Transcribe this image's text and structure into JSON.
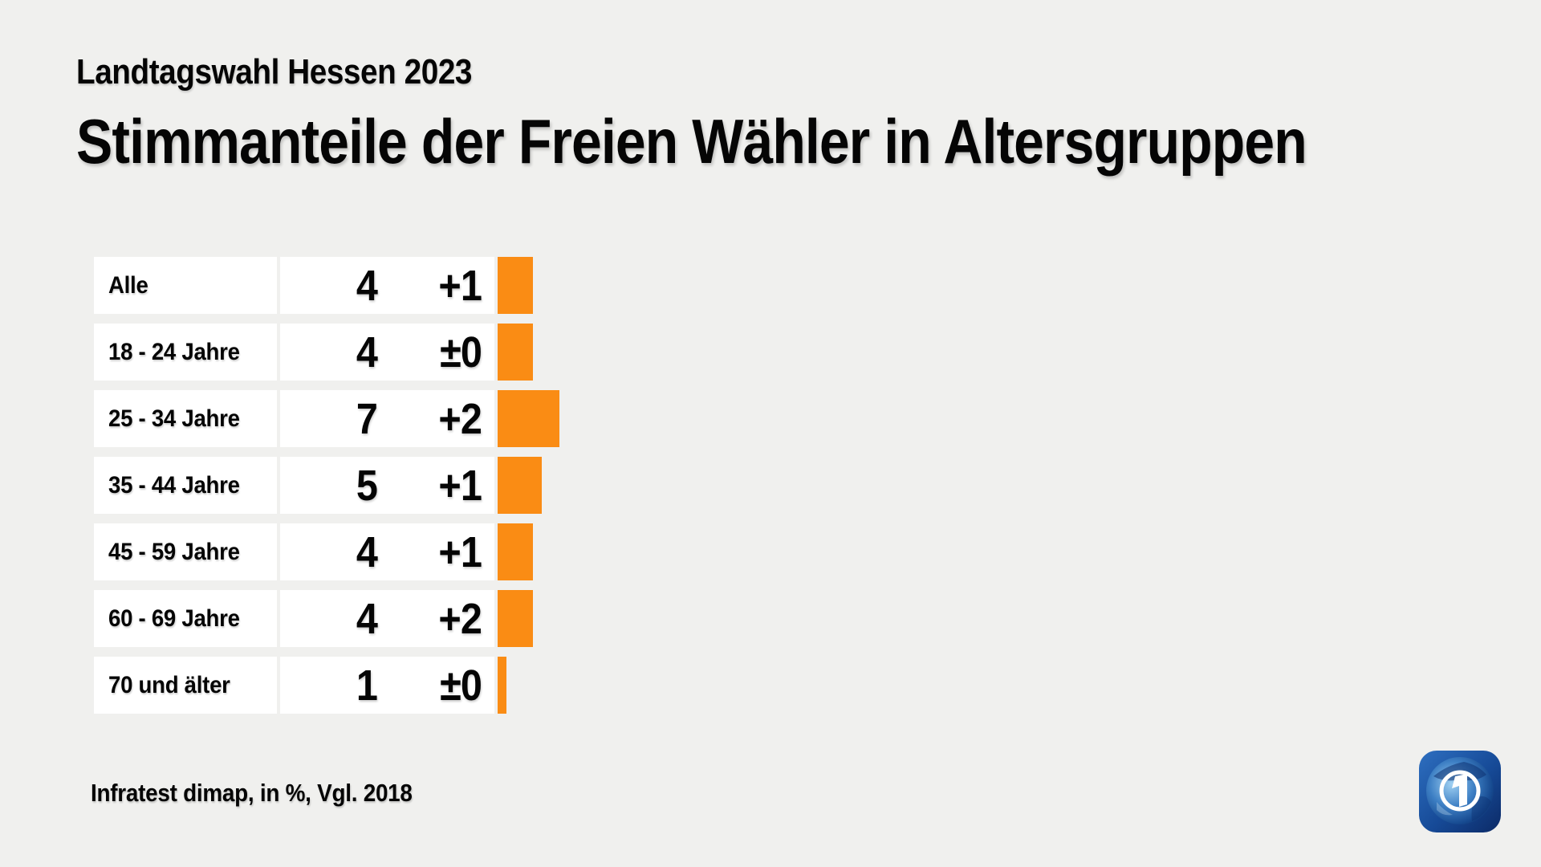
{
  "header": {
    "subtitle": "Landtagswahl Hessen 2023",
    "title": "Stimmanteile der Freien Wähler in Altersgruppen"
  },
  "footer": {
    "source": "Infratest dimap, in %, Vgl. 2018"
  },
  "logo": {
    "name": "ARD tagesschau logo"
  },
  "colors": {
    "background": "#F0F0EE",
    "bar": "#FA8C14",
    "cell": "#FFFFFF",
    "text": "#050505"
  },
  "chart_data": {
    "type": "bar",
    "orientation": "horizontal",
    "title": "Stimmanteile der Freien Wähler in Altersgruppen",
    "subtitle": "Landtagswahl Hessen 2023",
    "unit": "%",
    "comparison": "Vgl. 2018",
    "source": "Infratest dimap",
    "categories": [
      "Alle",
      "18 - 24 Jahre",
      "25 - 34 Jahre",
      "35 - 44 Jahre",
      "45 - 59 Jahre",
      "60 - 69 Jahre",
      "70 und älter"
    ],
    "values": [
      4,
      4,
      7,
      5,
      4,
      4,
      1
    ],
    "changes": [
      "+1",
      "±0",
      "+2",
      "+1",
      "+1",
      "+2",
      "±0"
    ],
    "xlim": [
      0,
      10
    ],
    "legend": false,
    "grid": false,
    "bar_color": "#FA8C14"
  }
}
